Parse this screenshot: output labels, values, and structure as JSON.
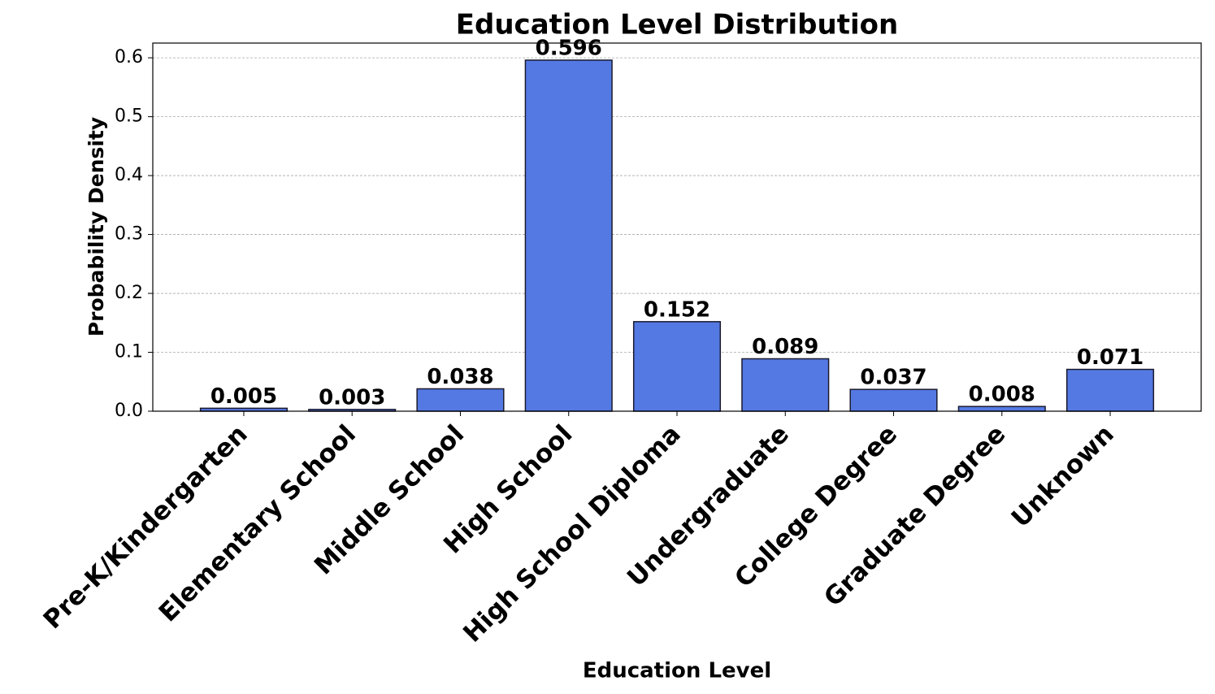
{
  "chart_data": {
    "type": "bar",
    "title": "Education Level Distribution",
    "x_label": "Education Level",
    "y_label": "Probability Density",
    "categories": [
      "Pre-K/Kindergarten",
      "Elementary School",
      "Middle School",
      "High School",
      "High School Diploma",
      "Undergraduate",
      "College Degree",
      "Graduate Degree",
      "Unknown"
    ],
    "values": [
      0.005,
      0.003,
      0.038,
      0.596,
      0.152,
      0.089,
      0.037,
      0.008,
      0.071
    ],
    "color": "#5479e3",
    "ylim": [
      0,
      0.625
    ],
    "yticks": [
      {
        "value": 0,
        "label": "0.0"
      },
      0.1,
      0.2,
      0.3,
      0.4,
      0.5,
      0.6
    ],
    "grid": true
  }
}
